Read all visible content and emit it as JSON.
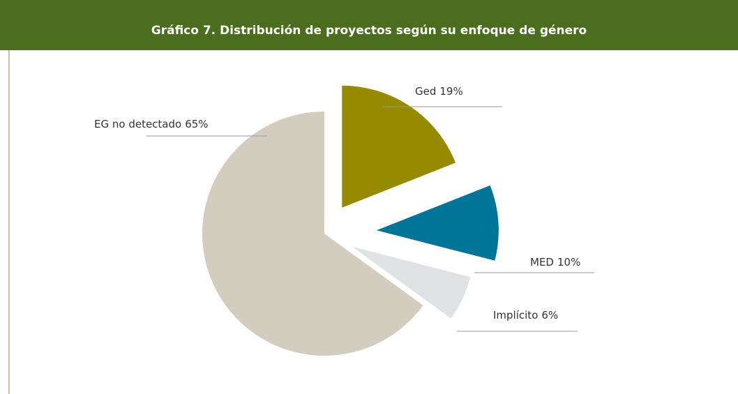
{
  "chart_data": {
    "type": "pie",
    "title": "Gráfico 7. Distribución de proyectos según su enfoque de género",
    "categories": [
      "Ged",
      "MED",
      "Implícito",
      "EG no detectado"
    ],
    "values": [
      19,
      10,
      6,
      65
    ],
    "value_labels": [
      "19%",
      "10%",
      "6%",
      "65%"
    ],
    "colors": [
      "#968a00",
      "#007597",
      "#e1e2e3",
      "#d3cdc0"
    ]
  }
}
